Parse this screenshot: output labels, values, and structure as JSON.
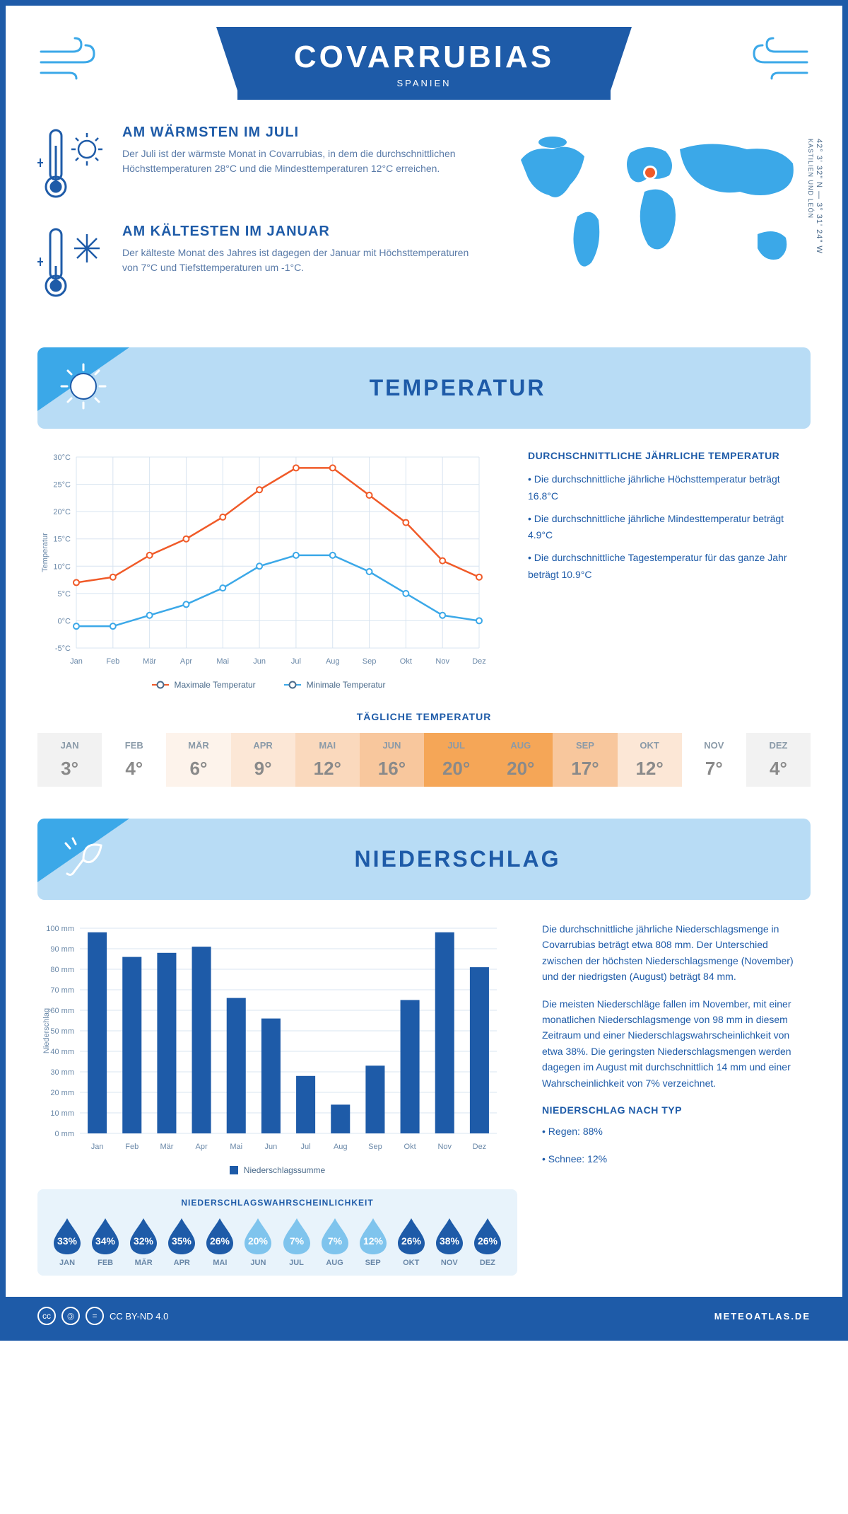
{
  "colors": {
    "primary": "#1e5ba8",
    "accent": "#3ba8e8",
    "light_blue": "#b8dcf5",
    "orange": "#f05a28",
    "blue_line": "#3ba8e8",
    "grid": "#d8e4f0",
    "text_muted": "#6a88a8"
  },
  "header": {
    "title": "COVARRUBIAS",
    "subtitle": "SPANIEN"
  },
  "summary": {
    "warm": {
      "title": "AM WÄRMSTEN IM JULI",
      "text": "Der Juli ist der wärmste Monat in Covarrubias, in dem die durchschnittlichen Höchsttemperaturen 28°C und die Mindesttemperaturen 12°C erreichen."
    },
    "cold": {
      "title": "AM KÄLTESTEN IM JANUAR",
      "text": "Der kälteste Monat des Jahres ist dagegen der Januar mit Höchsttemperaturen von 7°C und Tiefsttemperaturen um -1°C."
    },
    "coords": "42° 3' 32\" N — 3° 31' 24\" W",
    "region": "KASTILIEN UND LEÓN"
  },
  "temp_section": {
    "title": "TEMPERATUR",
    "chart": {
      "type": "line",
      "months": [
        "Jan",
        "Feb",
        "Mär",
        "Apr",
        "Mai",
        "Jun",
        "Jul",
        "Aug",
        "Sep",
        "Okt",
        "Nov",
        "Dez"
      ],
      "ylabel": "Temperatur",
      "ylim": [
        -5,
        30
      ],
      "ytick_step": 5,
      "series": {
        "max": {
          "label": "Maximale Temperatur",
          "color": "#f05a28",
          "values": [
            7,
            8,
            12,
            15,
            19,
            24,
            28,
            28,
            23,
            18,
            11,
            8
          ]
        },
        "min": {
          "label": "Minimale Temperatur",
          "color": "#3ba8e8",
          "values": [
            -1,
            -1,
            1,
            3,
            6,
            10,
            12,
            12,
            9,
            5,
            1,
            0
          ]
        }
      }
    },
    "stats": {
      "title": "DURCHSCHNITTLICHE JÄHRLICHE TEMPERATUR",
      "lines": [
        "• Die durchschnittliche jährliche Höchsttemperatur beträgt 16.8°C",
        "• Die durchschnittliche jährliche Mindesttemperatur beträgt 4.9°C",
        "• Die durchschnittliche Tagestemperatur für das ganze Jahr beträgt 10.9°C"
      ]
    },
    "daily": {
      "title": "TÄGLICHE TEMPERATUR",
      "months": [
        "JAN",
        "FEB",
        "MÄR",
        "APR",
        "MAI",
        "JUN",
        "JUL",
        "AUG",
        "SEP",
        "OKT",
        "NOV",
        "DEZ"
      ],
      "values": [
        "3°",
        "4°",
        "6°",
        "9°",
        "12°",
        "16°",
        "20°",
        "20°",
        "17°",
        "12°",
        "7°",
        "4°"
      ],
      "cell_colors": [
        "#f2f2f2",
        "#ffffff",
        "#fdf3eb",
        "#fce7d6",
        "#fad9bd",
        "#f8c79d",
        "#f5a657",
        "#f5a657",
        "#f8c79d",
        "#fce7d6",
        "#ffffff",
        "#f2f2f2"
      ]
    }
  },
  "precip_section": {
    "title": "NIEDERSCHLAG",
    "chart": {
      "type": "bar",
      "months": [
        "Jan",
        "Feb",
        "Mär",
        "Apr",
        "Mai",
        "Jun",
        "Jul",
        "Aug",
        "Sep",
        "Okt",
        "Nov",
        "Dez"
      ],
      "ylabel": "Niederschlag",
      "ylim": [
        0,
        100
      ],
      "ytick_step": 10,
      "values": [
        98,
        86,
        88,
        91,
        66,
        56,
        28,
        14,
        33,
        65,
        98,
        81
      ],
      "bar_color": "#1e5ba8",
      "legend": "Niederschlagssumme"
    },
    "text": {
      "p1": "Die durchschnittliche jährliche Niederschlagsmenge in Covarrubias beträgt etwa 808 mm. Der Unterschied zwischen der höchsten Niederschlagsmenge (November) und der niedrigsten (August) beträgt 84 mm.",
      "p2": "Die meisten Niederschläge fallen im November, mit einer monatlichen Niederschlagsmenge von 98 mm in diesem Zeitraum und einer Niederschlagswahrscheinlichkeit von etwa 38%. Die geringsten Niederschlagsmengen werden dagegen im August mit durchschnittlich 14 mm und einer Wahrscheinlichkeit von 7% verzeichnet."
    },
    "bytype": {
      "title": "NIEDERSCHLAG NACH TYP",
      "lines": [
        "• Regen: 88%",
        "• Schnee: 12%"
      ]
    },
    "prob": {
      "title": "NIEDERSCHLAGSWAHRSCHEINLICHKEIT",
      "months": [
        "JAN",
        "FEB",
        "MÄR",
        "APR",
        "MAI",
        "JUN",
        "JUL",
        "AUG",
        "SEP",
        "OKT",
        "NOV",
        "DEZ"
      ],
      "values": [
        33,
        34,
        32,
        35,
        26,
        20,
        7,
        7,
        12,
        26,
        38,
        26
      ],
      "dark": "#1e5ba8",
      "light": "#7fc4ed"
    }
  },
  "footer": {
    "license": "CC BY-ND 4.0",
    "site": "METEOATLAS.DE"
  }
}
